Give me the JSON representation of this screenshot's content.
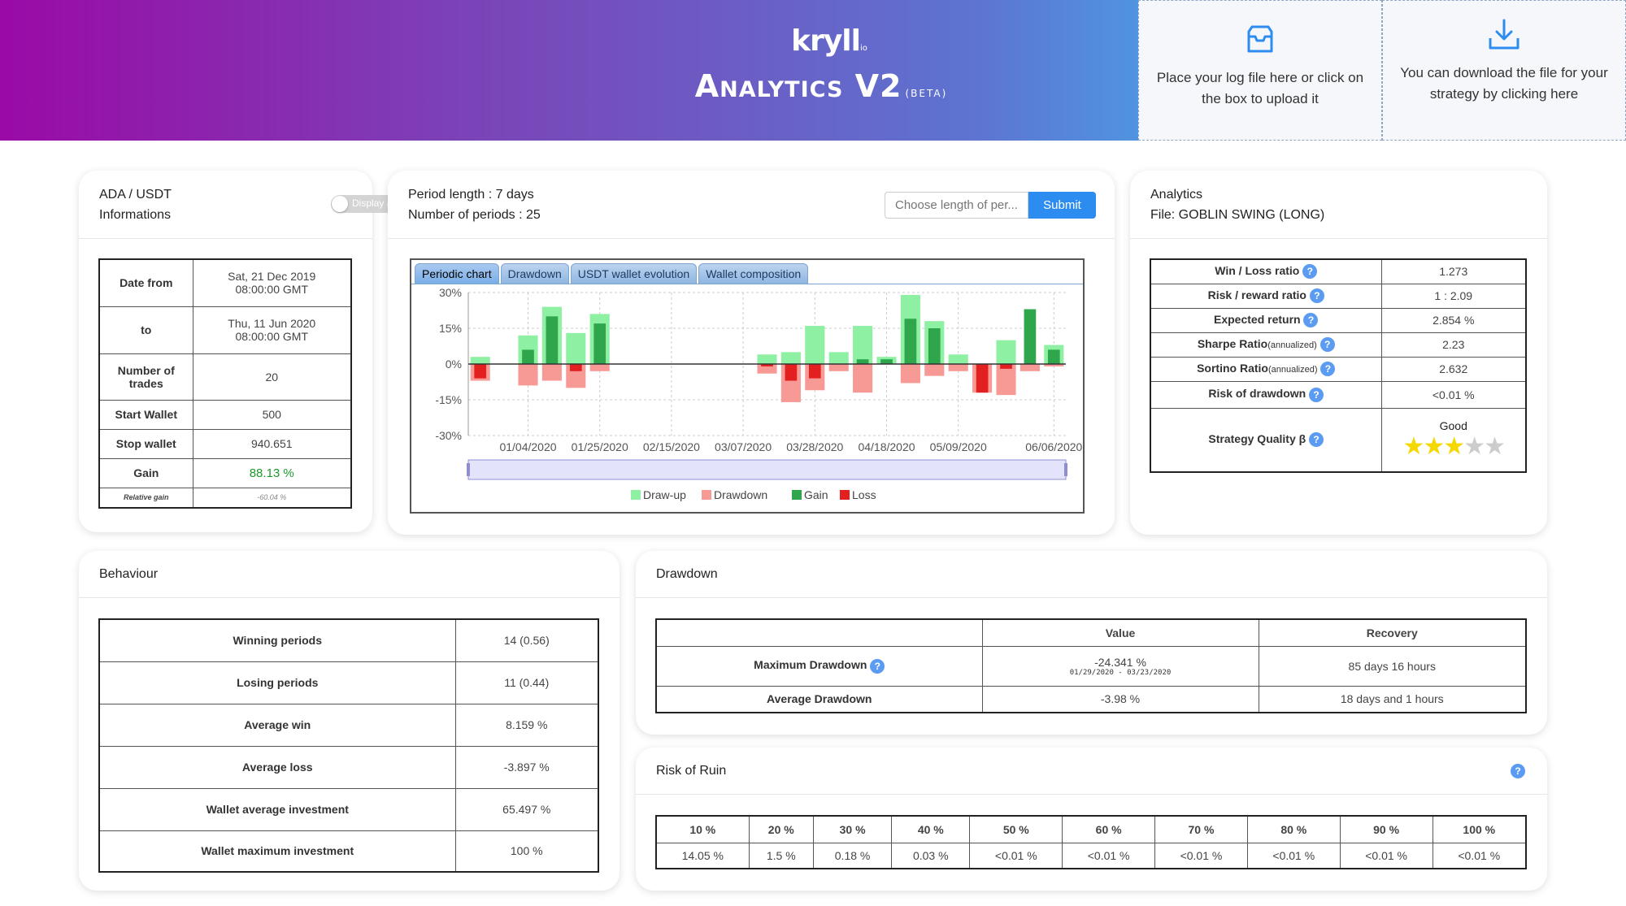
{
  "header": {
    "logo": "kryll",
    "logo_suffix": "io",
    "title": "Analytics V2",
    "beta": "(BETA)",
    "upload_text": "Place your log file here or click on the box to upload it",
    "download_text": "You can download the file for your strategy by clicking here",
    "upload_icon": "inbox-icon",
    "download_icon": "download-icon"
  },
  "info_card": {
    "pair": "ADA / USDT",
    "subtitle": "Informations",
    "toggle_label": "Display as ADA",
    "rows": {
      "date_from_label": "Date from",
      "date_from_1": "Sat, 21 Dec 2019",
      "date_from_2": "08:00:00 GMT",
      "to_label": "to",
      "to_1": "Thu, 11 Jun 2020",
      "to_2": "08:00:00 GMT",
      "trades_label": "Number of trades",
      "trades": "20",
      "start_label": "Start Wallet",
      "start": "500",
      "stop_label": "Stop wallet",
      "stop": "940.651",
      "gain_label": "Gain",
      "gain": "88.13 %",
      "rel_label": "Relative gain",
      "rel": "-60.04 %"
    },
    "gain_color": "#1a9a2a"
  },
  "chart_card": {
    "period_length": "Period length : 7 days",
    "periods": "Number of periods : 25",
    "input_placeholder": "Choose length of per...",
    "submit": "Submit",
    "tabs": [
      "Periodic chart",
      "Drawdown",
      "USDT wallet evolution",
      "Wallet composition"
    ]
  },
  "chart_data": {
    "type": "bar",
    "x": [
      "12/21/2019",
      "12/28/2019",
      "01/04/2020",
      "01/11/2020",
      "01/18/2020",
      "01/25/2020",
      "02/01/2020",
      "02/08/2020",
      "02/15/2020",
      "02/22/2020",
      "02/29/2020",
      "03/07/2020",
      "03/14/2020",
      "03/21/2020",
      "03/28/2020",
      "04/04/2020",
      "04/11/2020",
      "04/18/2020",
      "04/25/2020",
      "05/02/2020",
      "05/09/2020",
      "05/16/2020",
      "05/23/2020",
      "05/30/2020",
      "06/06/2020"
    ],
    "x_tick_labels": [
      "01/04/2020",
      "01/25/2020",
      "02/15/2020",
      "03/07/2020",
      "03/28/2020",
      "04/18/2020",
      "05/09/2020",
      "06/06/2020"
    ],
    "ylim": [
      -30,
      30
    ],
    "y_ticks": [
      "30%",
      "15%",
      "0%",
      "-15%",
      "-30%"
    ],
    "legend": [
      "Draw-up",
      "Drawdown",
      "Gain",
      "Loss"
    ],
    "colors": {
      "drawup": "#8ef0a2",
      "drawdown": "#f79a96",
      "gain": "#2fa64c",
      "loss": "#e32020"
    },
    "series": [
      {
        "name": "Draw-up",
        "values": [
          3,
          0,
          12,
          24,
          13,
          21,
          0,
          0,
          0,
          0,
          0,
          0,
          4,
          5,
          16,
          5,
          16,
          3,
          29,
          18,
          4,
          0,
          10,
          0,
          8
        ]
      },
      {
        "name": "Drawdown",
        "values": [
          -7,
          0,
          -9,
          -7,
          -10,
          -3,
          0,
          0,
          0,
          0,
          0,
          0,
          -4,
          -16,
          -11,
          -3,
          -12,
          0,
          -8,
          -5,
          -3,
          -12,
          -13,
          -3,
          -1
        ]
      },
      {
        "name": "Gain",
        "values": [
          0,
          0,
          6,
          20,
          0,
          17,
          0,
          0,
          0,
          0,
          0,
          0,
          0,
          0,
          0,
          0,
          2,
          2,
          19,
          15,
          0,
          0,
          0,
          23,
          6
        ]
      },
      {
        "name": "Loss",
        "values": [
          -6,
          0,
          0,
          0,
          -3,
          0,
          0,
          0,
          0,
          0,
          0,
          0,
          -1,
          -7,
          -6,
          0,
          0,
          0,
          0,
          0,
          0,
          -12,
          -2,
          0,
          0
        ]
      }
    ]
  },
  "analytics_card": {
    "title": "Analytics",
    "file": "File: GOBLIN SWING (LONG)",
    "rows": [
      {
        "label": "Win / Loss ratio",
        "sub": "",
        "value": "1.273"
      },
      {
        "label": "Risk / reward ratio",
        "sub": "",
        "value": "1 : 2.09"
      },
      {
        "label": "Expected return",
        "sub": "",
        "value": "2.854 %"
      },
      {
        "label": "Sharpe Ratio",
        "sub": "(annualized)",
        "value": "2.23"
      },
      {
        "label": "Sortino Ratio",
        "sub": "(annualized)",
        "value": "2.632"
      },
      {
        "label": "Risk of drawdown",
        "sub": "",
        "value": "<0.01 %"
      }
    ],
    "quality_label": "Strategy Quality β",
    "quality_value": "Good",
    "stars": 3,
    "stars_max": 5,
    "help": "?"
  },
  "behaviour_card": {
    "title": "Behaviour",
    "rows": [
      {
        "label": "Winning periods",
        "value": "14 (0.56)"
      },
      {
        "label": "Losing periods",
        "value": "11 (0.44)"
      },
      {
        "label": "Average win",
        "value": "8.159 %"
      },
      {
        "label": "Average loss",
        "value": "-3.897 %"
      },
      {
        "label": "Wallet average investment",
        "value": "65.497 %"
      },
      {
        "label": "Wallet maximum investment",
        "value": "100 %"
      }
    ]
  },
  "drawdown_card": {
    "title": "Drawdown",
    "col_value": "Value",
    "col_recovery": "Recovery",
    "max_label": "Maximum Drawdown",
    "max_value": "-24.341 %",
    "max_dates": "01/29/2020 - 03/23/2020",
    "max_recovery": "85 days 16 hours",
    "avg_label": "Average Drawdown",
    "avg_value": "-3.98 %",
    "avg_recovery": "18 days and 1 hours"
  },
  "ruin_card": {
    "title": "Risk of Ruin",
    "headers": [
      "10 %",
      "20 %",
      "30 %",
      "40 %",
      "50 %",
      "60 %",
      "70 %",
      "80 %",
      "90 %",
      "100 %"
    ],
    "values": [
      "14.05 %",
      "1.5 %",
      "0.18 %",
      "0.03 %",
      "<0.01 %",
      "<0.01 %",
      "<0.01 %",
      "<0.01 %",
      "<0.01 %",
      "<0.01 %"
    ]
  }
}
